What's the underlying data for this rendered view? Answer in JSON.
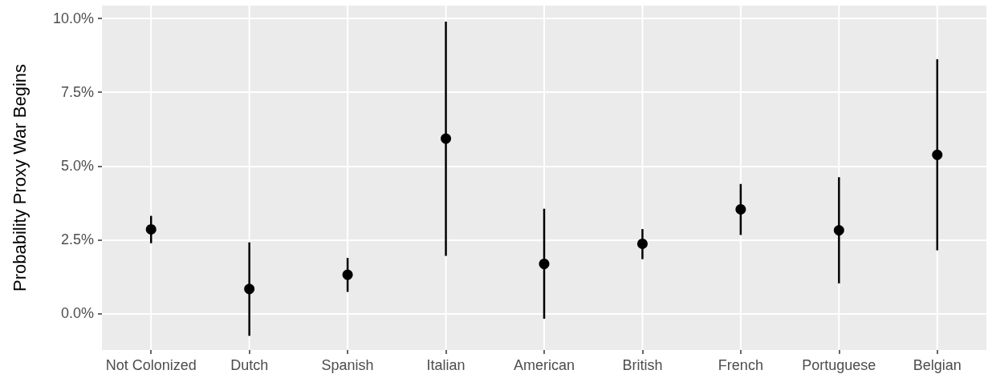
{
  "chart_data": {
    "type": "scatter",
    "ylabel": "Probability Proxy War Begins",
    "categories": [
      "Not Colonized",
      "Dutch",
      "Spanish",
      "Italian",
      "American",
      "British",
      "French",
      "Portuguese",
      "Belgian"
    ],
    "values": [
      2.85,
      0.83,
      1.31,
      5.93,
      1.68,
      2.36,
      3.53,
      2.82,
      5.38
    ],
    "errors": [
      [
        2.38,
        3.31
      ],
      [
        -0.76,
        2.41
      ],
      [
        0.73,
        1.88
      ],
      [
        1.95,
        9.9
      ],
      [
        -0.18,
        3.55
      ],
      [
        1.84,
        2.86
      ],
      [
        2.66,
        4.39
      ],
      [
        1.02,
        4.62
      ],
      [
        2.14,
        8.62
      ]
    ],
    "color": "#000000",
    "marker": "circle",
    "ylim": [
      -1.24,
      10.44
    ],
    "yticks": [
      {
        "value": 0,
        "label": "0.0%"
      },
      {
        "value": 2.5,
        "label": "2.5%"
      },
      {
        "value": 5,
        "label": "5.0%"
      },
      {
        "value": 7.5,
        "label": "7.5%"
      },
      {
        "value": 10,
        "label": "10.0%"
      }
    ],
    "grid": true
  }
}
